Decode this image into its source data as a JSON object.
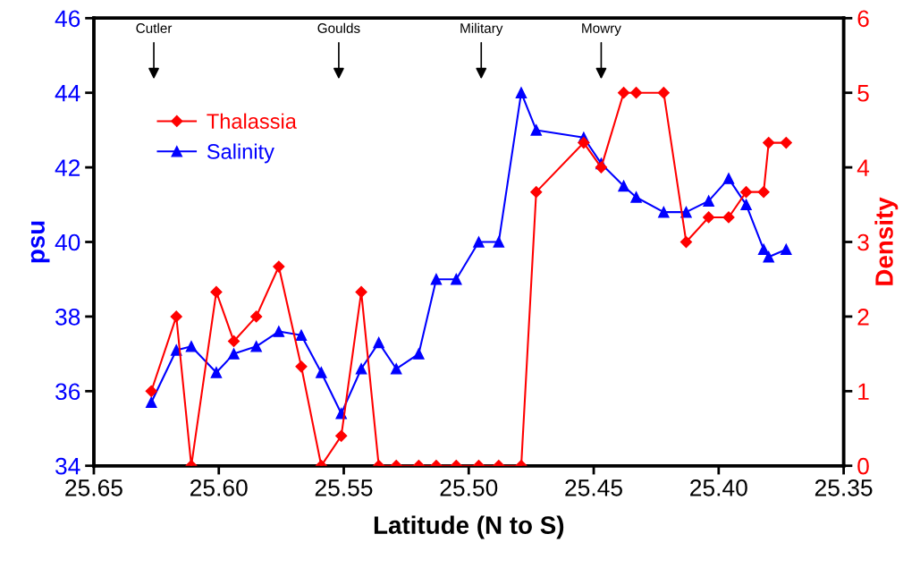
{
  "chart_data": {
    "type": "line",
    "xlabel": "Latitude (N to S)",
    "ylabel": "psu",
    "y2label": "Density",
    "x": [
      25.627,
      25.617,
      25.611,
      25.601,
      25.594,
      25.585,
      25.576,
      25.567,
      25.559,
      25.551,
      25.543,
      25.536,
      25.529,
      25.52,
      25.513,
      25.505,
      25.496,
      25.488,
      25.479,
      25.473,
      25.454,
      25.447,
      25.438,
      25.433,
      25.422,
      25.413,
      25.404,
      25.396,
      25.389,
      25.382,
      25.38,
      25.373
    ],
    "series": [
      {
        "name": "Thalassia",
        "color": "#ff0000",
        "axis": "y2",
        "marker": "diamond",
        "values": [
          1.0,
          2.0,
          0,
          2.33,
          1.67,
          2.0,
          2.67,
          1.33,
          0,
          0.4,
          2.33,
          0,
          0,
          0,
          0,
          0,
          0,
          0,
          0,
          3.67,
          4.33,
          4.0,
          5.0,
          5.0,
          5.0,
          3.0,
          3.33,
          3.33,
          3.67,
          3.67,
          4.33,
          4.33
        ]
      },
      {
        "name": "Salinity",
        "color": "#0000ff",
        "marker": "triangle",
        "values": [
          35.7,
          37.1,
          37.2,
          36.5,
          37.0,
          37.2,
          37.6,
          37.5,
          36.5,
          35.4,
          36.6,
          37.3,
          36.6,
          37.0,
          39.0,
          39.0,
          40.0,
          40.0,
          44.0,
          43.0,
          42.8,
          42.1,
          41.5,
          41.2,
          40.8,
          40.8,
          41.1,
          41.7,
          41.0,
          39.8,
          39.6,
          39.8
        ]
      }
    ],
    "xlim": [
      25.65,
      25.35
    ],
    "xticks": [
      {
        "value": 25.65,
        "label": "25.65"
      },
      {
        "value": 25.6,
        "label": "25.60"
      },
      {
        "value": 25.55,
        "label": "25.55"
      },
      {
        "value": 25.5,
        "label": "25.50"
      },
      {
        "value": 25.45,
        "label": "25.45"
      },
      {
        "value": 25.4,
        "label": "25.40"
      },
      {
        "value": 25.35,
        "label": "25.35"
      }
    ],
    "ylim": [
      34,
      46
    ],
    "yticks": [
      34,
      36,
      38,
      40,
      42,
      44,
      46
    ],
    "y2lim": [
      0,
      6
    ],
    "y2ticks": [
      0,
      1,
      2,
      3,
      4,
      5,
      6
    ],
    "annotations": [
      {
        "text": "Cutler",
        "x": 25.626
      },
      {
        "text": "Goulds",
        "x": 25.552
      },
      {
        "text": "Military",
        "x": 25.495
      },
      {
        "text": "Mowry",
        "x": 25.447
      }
    ],
    "legend": "top left",
    "grid": false
  }
}
